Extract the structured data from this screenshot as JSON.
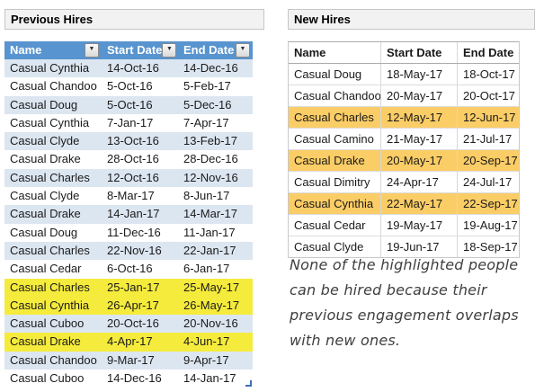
{
  "titles": {
    "left": "Previous Hires",
    "right": "New Hires"
  },
  "icons": {
    "filter_dropdown": "▼"
  },
  "colors": {
    "header_blue": "#5894CF",
    "band_blue": "#DCE6F1",
    "highlight_yellow": "#F5EB3C",
    "highlight_orange": "#FBCD66",
    "title_bg": "#F2F2F2"
  },
  "left_table": {
    "headers": [
      "Name",
      "Start Date",
      "End Date"
    ],
    "has_filters": true,
    "banded": true,
    "rows": [
      {
        "name": "Casual Cynthia",
        "start": "14-Oct-16",
        "end": "14-Dec-16",
        "highlighted": false
      },
      {
        "name": "Casual Chandoo",
        "start": "5-Oct-16",
        "end": "5-Feb-17",
        "highlighted": false
      },
      {
        "name": "Casual Doug",
        "start": "5-Oct-16",
        "end": "5-Dec-16",
        "highlighted": false
      },
      {
        "name": "Casual Cynthia",
        "start": "7-Jan-17",
        "end": "7-Apr-17",
        "highlighted": false
      },
      {
        "name": "Casual Clyde",
        "start": "13-Oct-16",
        "end": "13-Feb-17",
        "highlighted": false
      },
      {
        "name": "Casual Drake",
        "start": "28-Oct-16",
        "end": "28-Dec-16",
        "highlighted": false
      },
      {
        "name": "Casual Charles",
        "start": "12-Oct-16",
        "end": "12-Nov-16",
        "highlighted": false
      },
      {
        "name": "Casual Clyde",
        "start": "8-Mar-17",
        "end": "8-Jun-17",
        "highlighted": false
      },
      {
        "name": "Casual Drake",
        "start": "14-Jan-17",
        "end": "14-Mar-17",
        "highlighted": false
      },
      {
        "name": "Casual Doug",
        "start": "11-Dec-16",
        "end": "11-Jan-17",
        "highlighted": false
      },
      {
        "name": "Casual Charles",
        "start": "22-Nov-16",
        "end": "22-Jan-17",
        "highlighted": false
      },
      {
        "name": "Casual Cedar",
        "start": "6-Oct-16",
        "end": "6-Jan-17",
        "highlighted": false
      },
      {
        "name": "Casual Charles",
        "start": "25-Jan-17",
        "end": "25-May-17",
        "highlighted": true
      },
      {
        "name": "Casual Cynthia",
        "start": "26-Apr-17",
        "end": "26-May-17",
        "highlighted": true
      },
      {
        "name": "Casual Cuboo",
        "start": "20-Oct-16",
        "end": "20-Nov-16",
        "highlighted": false
      },
      {
        "name": "Casual Drake",
        "start": "4-Apr-17",
        "end": "4-Jun-17",
        "highlighted": true
      },
      {
        "name": "Casual Chandoo",
        "start": "9-Mar-17",
        "end": "9-Apr-17",
        "highlighted": false
      },
      {
        "name": "Casual Cuboo",
        "start": "14-Dec-16",
        "end": "14-Jan-17",
        "highlighted": false
      }
    ]
  },
  "right_table": {
    "headers": [
      "Name",
      "Start Date",
      "End Date"
    ],
    "has_filters": false,
    "banded": false,
    "rows": [
      {
        "name": "Casual Doug",
        "start": "18-May-17",
        "end": "18-Oct-17",
        "highlighted": false
      },
      {
        "name": "Casual Chandoo",
        "start": "20-May-17",
        "end": "20-Oct-17",
        "highlighted": false
      },
      {
        "name": "Casual Charles",
        "start": "12-May-17",
        "end": "12-Jun-17",
        "highlighted": true
      },
      {
        "name": "Casual Camino",
        "start": "21-May-17",
        "end": "21-Jul-17",
        "highlighted": false
      },
      {
        "name": "Casual Drake",
        "start": "20-May-17",
        "end": "20-Sep-17",
        "highlighted": true
      },
      {
        "name": "Casual Dimitry",
        "start": "24-Apr-17",
        "end": "24-Jul-17",
        "highlighted": false
      },
      {
        "name": "Casual Cynthia",
        "start": "22-May-17",
        "end": "22-Sep-17",
        "highlighted": true
      },
      {
        "name": "Casual Cedar",
        "start": "19-May-17",
        "end": "19-Aug-17",
        "highlighted": false
      },
      {
        "name": "Casual Clyde",
        "start": "19-Jun-17",
        "end": "18-Sep-17",
        "highlighted": false
      }
    ]
  },
  "note": {
    "lines": [
      "None of the highlighted people",
      "can be hired because their",
      "previous engagement overlaps",
      "with new ones."
    ]
  }
}
